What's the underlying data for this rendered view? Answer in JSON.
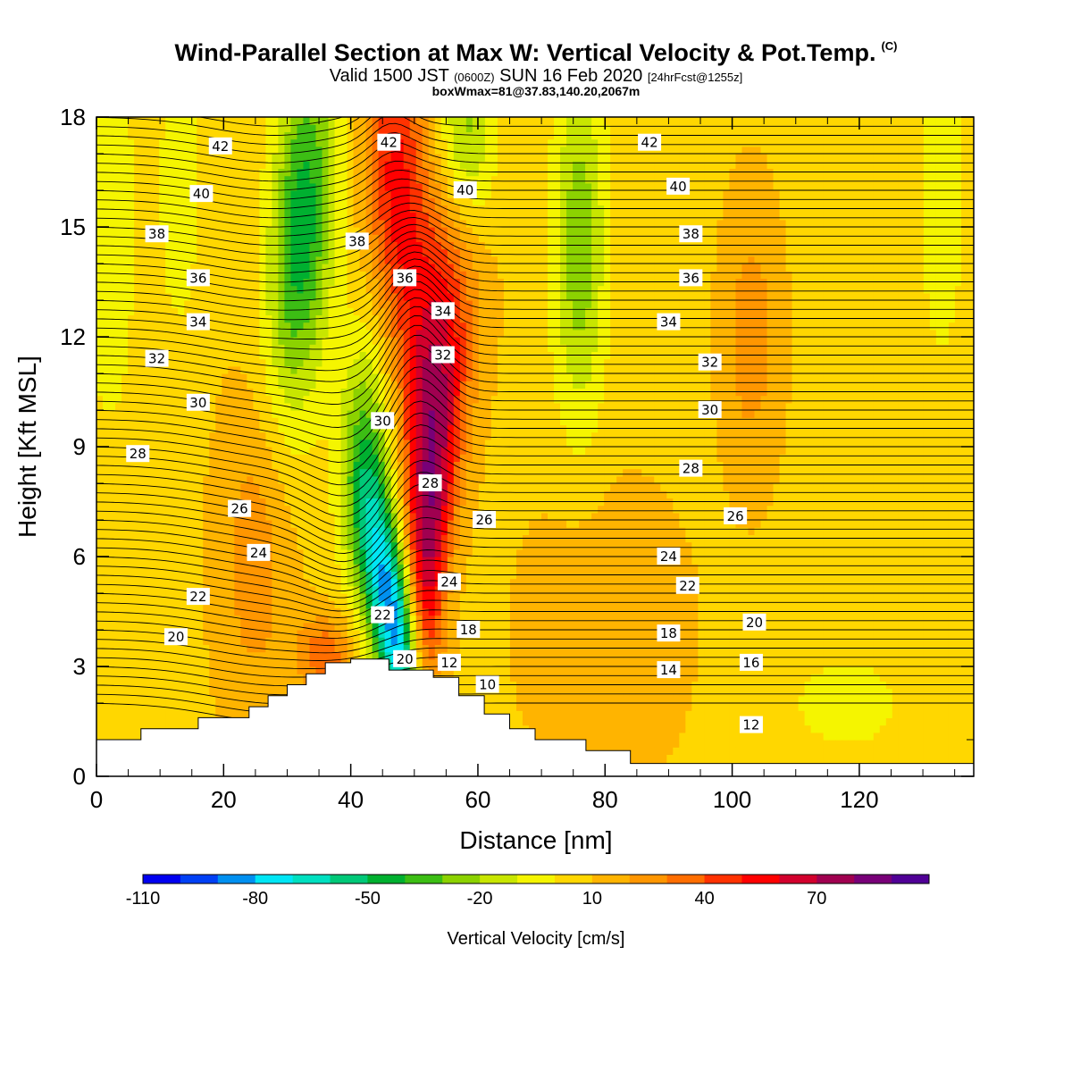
{
  "title": {
    "main": "Wind-Parallel Section at Max W: Vertical Velocity & Pot.Temp.",
    "copyright": "(C)",
    "valid_prefix": "Valid 1500 JST",
    "valid_z": "(0600Z)",
    "valid_date": "SUN 16 Feb 2020",
    "forecast": "[24hrFcst@1255z]",
    "box": "boxWmax=81@37.83,140.20,2067m"
  },
  "chart_data": {
    "type": "heatmap",
    "xlabel": "Distance [nm]",
    "ylabel": "Height [Kft MSL]",
    "xlim": [
      0,
      138
    ],
    "ylim": [
      0,
      18
    ],
    "x_ticks": [
      0,
      20,
      40,
      60,
      80,
      100,
      120
    ],
    "y_ticks": [
      0,
      3,
      6,
      9,
      12,
      15,
      18
    ],
    "colorbar": {
      "label": "Vertical Velocity [cm/s]",
      "tick_labels": [
        "-110",
        "-80",
        "-50",
        "-20",
        "10",
        "40",
        "70"
      ],
      "tick_values": [
        -110,
        -80,
        -50,
        -20,
        10,
        40,
        70
      ],
      "colors": [
        "#0000f0",
        "#0040f5",
        "#0090f0",
        "#00e6f5",
        "#00e0c0",
        "#00c878",
        "#00b030",
        "#3cbe14",
        "#8cd200",
        "#c8e600",
        "#f5f500",
        "#ffd700",
        "#ffb400",
        "#ff9600",
        "#ff6e00",
        "#ff3200",
        "#ff0000",
        "#d2002d",
        "#a00050",
        "#780078",
        "#500096"
      ],
      "levels": [
        -110,
        -100,
        -90,
        -80,
        -70,
        -60,
        -50,
        -40,
        -30,
        -20,
        -10,
        0,
        10,
        20,
        30,
        40,
        50,
        60,
        70,
        80,
        90,
        100
      ]
    },
    "terrain_height_kft": [
      [
        0,
        1.0
      ],
      [
        7,
        1.0
      ],
      [
        7,
        1.3
      ],
      [
        16,
        1.3
      ],
      [
        16,
        1.6
      ],
      [
        24,
        1.6
      ],
      [
        24,
        1.9
      ],
      [
        27,
        1.9
      ],
      [
        27,
        2.2
      ],
      [
        30,
        2.2
      ],
      [
        30,
        2.5
      ],
      [
        33,
        2.5
      ],
      [
        33,
        2.8
      ],
      [
        36,
        2.8
      ],
      [
        36,
        3.1
      ],
      [
        40,
        3.1
      ],
      [
        40,
        3.2
      ],
      [
        46,
        3.2
      ],
      [
        46,
        2.9
      ],
      [
        53,
        2.9
      ],
      [
        53,
        2.7
      ],
      [
        57,
        2.7
      ],
      [
        57,
        2.2
      ],
      [
        61,
        2.2
      ],
      [
        61,
        1.7
      ],
      [
        65,
        1.7
      ],
      [
        65,
        1.3
      ],
      [
        69,
        1.3
      ],
      [
        69,
        1.0
      ],
      [
        77,
        1.0
      ],
      [
        77,
        0.7
      ],
      [
        84,
        0.7
      ],
      [
        84,
        0.35
      ],
      [
        138,
        0.35
      ]
    ],
    "updraft_core": {
      "x_nm": 52,
      "y_kft": 8.5,
      "w_cm_s": 81
    },
    "contour_labels": [
      {
        "text": "42",
        "x": 19.5,
        "y": 17.2
      },
      {
        "text": "42",
        "x": 46,
        "y": 17.3
      },
      {
        "text": "42",
        "x": 87,
        "y": 17.3
      },
      {
        "text": "40",
        "x": 16.5,
        "y": 15.9
      },
      {
        "text": "40",
        "x": 58,
        "y": 16.0
      },
      {
        "text": "40",
        "x": 91.5,
        "y": 16.1
      },
      {
        "text": "38",
        "x": 9.5,
        "y": 14.8
      },
      {
        "text": "38",
        "x": 41,
        "y": 14.6
      },
      {
        "text": "38",
        "x": 93.5,
        "y": 14.8
      },
      {
        "text": "36",
        "x": 16,
        "y": 13.6
      },
      {
        "text": "36",
        "x": 48.5,
        "y": 13.6
      },
      {
        "text": "36",
        "x": 93.5,
        "y": 13.6
      },
      {
        "text": "34",
        "x": 16,
        "y": 12.4
      },
      {
        "text": "34",
        "x": 54.5,
        "y": 12.7
      },
      {
        "text": "34",
        "x": 90,
        "y": 12.4
      },
      {
        "text": "32",
        "x": 9.5,
        "y": 11.4
      },
      {
        "text": "32",
        "x": 54.5,
        "y": 11.5
      },
      {
        "text": "32",
        "x": 96.5,
        "y": 11.3
      },
      {
        "text": "30",
        "x": 16,
        "y": 10.2
      },
      {
        "text": "30",
        "x": 45,
        "y": 9.7
      },
      {
        "text": "30",
        "x": 96.5,
        "y": 10.0
      },
      {
        "text": "28",
        "x": 6.5,
        "y": 8.8
      },
      {
        "text": "28",
        "x": 52.5,
        "y": 8.0
      },
      {
        "text": "28",
        "x": 93.5,
        "y": 8.4
      },
      {
        "text": "26",
        "x": 22.5,
        "y": 7.3
      },
      {
        "text": "26",
        "x": 61,
        "y": 7.0
      },
      {
        "text": "26",
        "x": 100.5,
        "y": 7.1
      },
      {
        "text": "24",
        "x": 25.5,
        "y": 6.1
      },
      {
        "text": "24",
        "x": 55.5,
        "y": 5.3
      },
      {
        "text": "24",
        "x": 90,
        "y": 6.0
      },
      {
        "text": "22",
        "x": 16,
        "y": 4.9
      },
      {
        "text": "22",
        "x": 45,
        "y": 4.4
      },
      {
        "text": "22",
        "x": 93,
        "y": 5.2
      },
      {
        "text": "20",
        "x": 12.5,
        "y": 3.8
      },
      {
        "text": "20",
        "x": 48.5,
        "y": 3.2
      },
      {
        "text": "20",
        "x": 103.5,
        "y": 4.2
      },
      {
        "text": "18",
        "x": 58.5,
        "y": 4.0
      },
      {
        "text": "18",
        "x": 90,
        "y": 3.9
      },
      {
        "text": "16",
        "x": 103,
        "y": 3.1
      },
      {
        "text": "14",
        "x": 90,
        "y": 2.9
      },
      {
        "text": "12",
        "x": 55.5,
        "y": 3.1
      },
      {
        "text": "12",
        "x": 103,
        "y": 1.4
      },
      {
        "text": "10",
        "x": 61.5,
        "y": 2.5
      }
    ]
  }
}
